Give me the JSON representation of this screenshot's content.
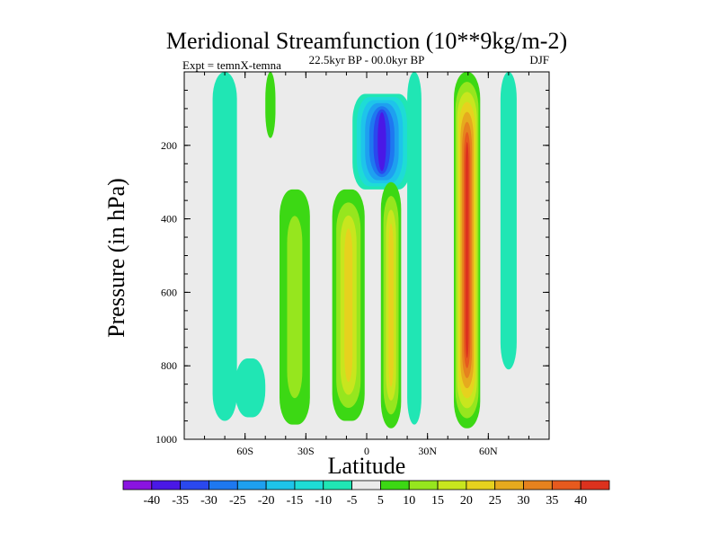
{
  "chart_data": {
    "type": "contour",
    "title": "Meridional Streamfunction (10**9kg/m-2)",
    "subtitle": "22.5kyr BP - 00.0kyr BP",
    "left_annotation": "Expt = temnX-temna",
    "right_annotation": "DJF",
    "xlabel": "Latitude",
    "ylabel": "Pressure (in hPa)",
    "xlim": [
      -90,
      90
    ],
    "ylim": [
      1000,
      0
    ],
    "x_ticks": [
      {
        "value": -60,
        "label": "60S"
      },
      {
        "value": -30,
        "label": "30S"
      },
      {
        "value": 0,
        "label": "0"
      },
      {
        "value": 30,
        "label": "30N"
      },
      {
        "value": 60,
        "label": "60N"
      }
    ],
    "y_ticks": [
      {
        "value": 200,
        "label": "200"
      },
      {
        "value": 400,
        "label": "400"
      },
      {
        "value": 600,
        "label": "600"
      },
      {
        "value": 800,
        "label": "800"
      },
      {
        "value": 1000,
        "label": "1000"
      }
    ],
    "colorbar": {
      "labels": [
        "-40",
        "-35",
        "-30",
        "-25",
        "-20",
        "-15",
        "-10",
        "-5",
        "5",
        "10",
        "15",
        "20",
        "25",
        "30",
        "35",
        "40"
      ],
      "colors": [
        "#8a14e0",
        "#4a18e6",
        "#2a48ee",
        "#1e78f0",
        "#1ea0f0",
        "#1ec4ea",
        "#1edcd6",
        "#20e6b4",
        "#ebebeb",
        "#3cd814",
        "#96e61e",
        "#c8e61e",
        "#e6d21e",
        "#e6aa1e",
        "#e6821e",
        "#e65a1e",
        "#dc321e"
      ]
    },
    "features": [
      {
        "name": "sh-high-lat-band",
        "sign": "negative",
        "lat_range": [
          -76,
          -64
        ],
        "p_range": [
          0,
          950
        ],
        "peak": -7
      },
      {
        "name": "sh-polar-edge-band",
        "sign": "negative",
        "lat_range": [
          -65,
          -50
        ],
        "p_range": [
          780,
          940
        ],
        "peak": -7
      },
      {
        "name": "sh-upper-mid-lat-cell",
        "sign": "positive",
        "lat_range": [
          -50,
          -45
        ],
        "p_range": [
          0,
          180
        ],
        "peak": 7
      },
      {
        "name": "sh-mid-lat-column",
        "sign": "positive",
        "lat_range": [
          -43,
          -28
        ],
        "p_range": [
          320,
          960
        ],
        "peak": 10
      },
      {
        "name": "tropical-upper-negative-cell",
        "sign": "negative",
        "lat_range": [
          -7,
          22
        ],
        "p_range": [
          60,
          320
        ],
        "peak": -35
      },
      {
        "name": "sh-tropical-column",
        "sign": "positive",
        "lat_range": [
          -17,
          -1
        ],
        "p_range": [
          320,
          950
        ],
        "peak": 20
      },
      {
        "name": "nh-tropical-column",
        "sign": "positive",
        "lat_range": [
          7,
          17
        ],
        "p_range": [
          300,
          970
        ],
        "peak": 20
      },
      {
        "name": "nh-subtropical-band",
        "sign": "negative",
        "lat_range": [
          20,
          27
        ],
        "p_range": [
          0,
          960
        ],
        "peak": -7
      },
      {
        "name": "nh-mid-lat-column",
        "sign": "positive",
        "lat_range": [
          43,
          56
        ],
        "p_range": [
          0,
          970
        ],
        "peak": 40
      },
      {
        "name": "nh-high-lat-band",
        "sign": "negative",
        "lat_range": [
          66,
          74
        ],
        "p_range": [
          0,
          810
        ],
        "peak": -7
      }
    ]
  }
}
